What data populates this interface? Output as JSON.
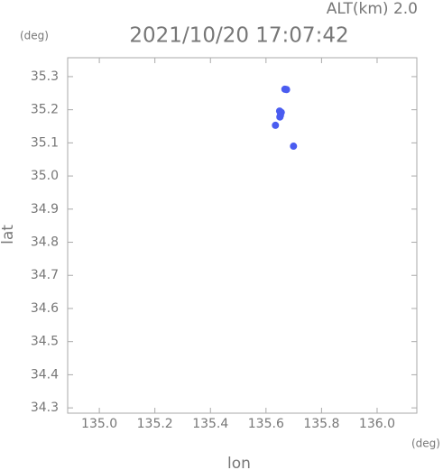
{
  "chart_data": {
    "type": "scatter",
    "title": "2021/10/20 17:07:42",
    "annotation": "ALT(km) 2.0",
    "y_unit": "(deg)",
    "x_unit": "(deg)",
    "x_label": "lon",
    "y_label": "lat",
    "series": [
      {
        "color": "#4a5cf0",
        "x": [
          135.668,
          135.674,
          135.649,
          135.655,
          135.652,
          135.65,
          135.699,
          135.634
        ],
        "values": [
          35.262,
          35.261,
          35.196,
          35.192,
          35.183,
          35.178,
          35.09,
          35.153
        ]
      }
    ],
    "xlim": [
      134.886,
      136.143
    ],
    "ylim": [
      34.284,
      35.357
    ],
    "xticks": [
      {
        "value": 135.0,
        "label": "135.0"
      },
      135.2,
      135.4,
      135.6,
      135.8,
      {
        "value": 136.0,
        "label": "136.0"
      }
    ],
    "yticks": [
      35.3,
      35.2,
      35.1,
      {
        "value": 35.0,
        "label": "35.0"
      },
      34.9,
      34.8,
      34.7,
      34.6,
      34.5,
      34.4,
      34.3
    ],
    "grid": false
  }
}
